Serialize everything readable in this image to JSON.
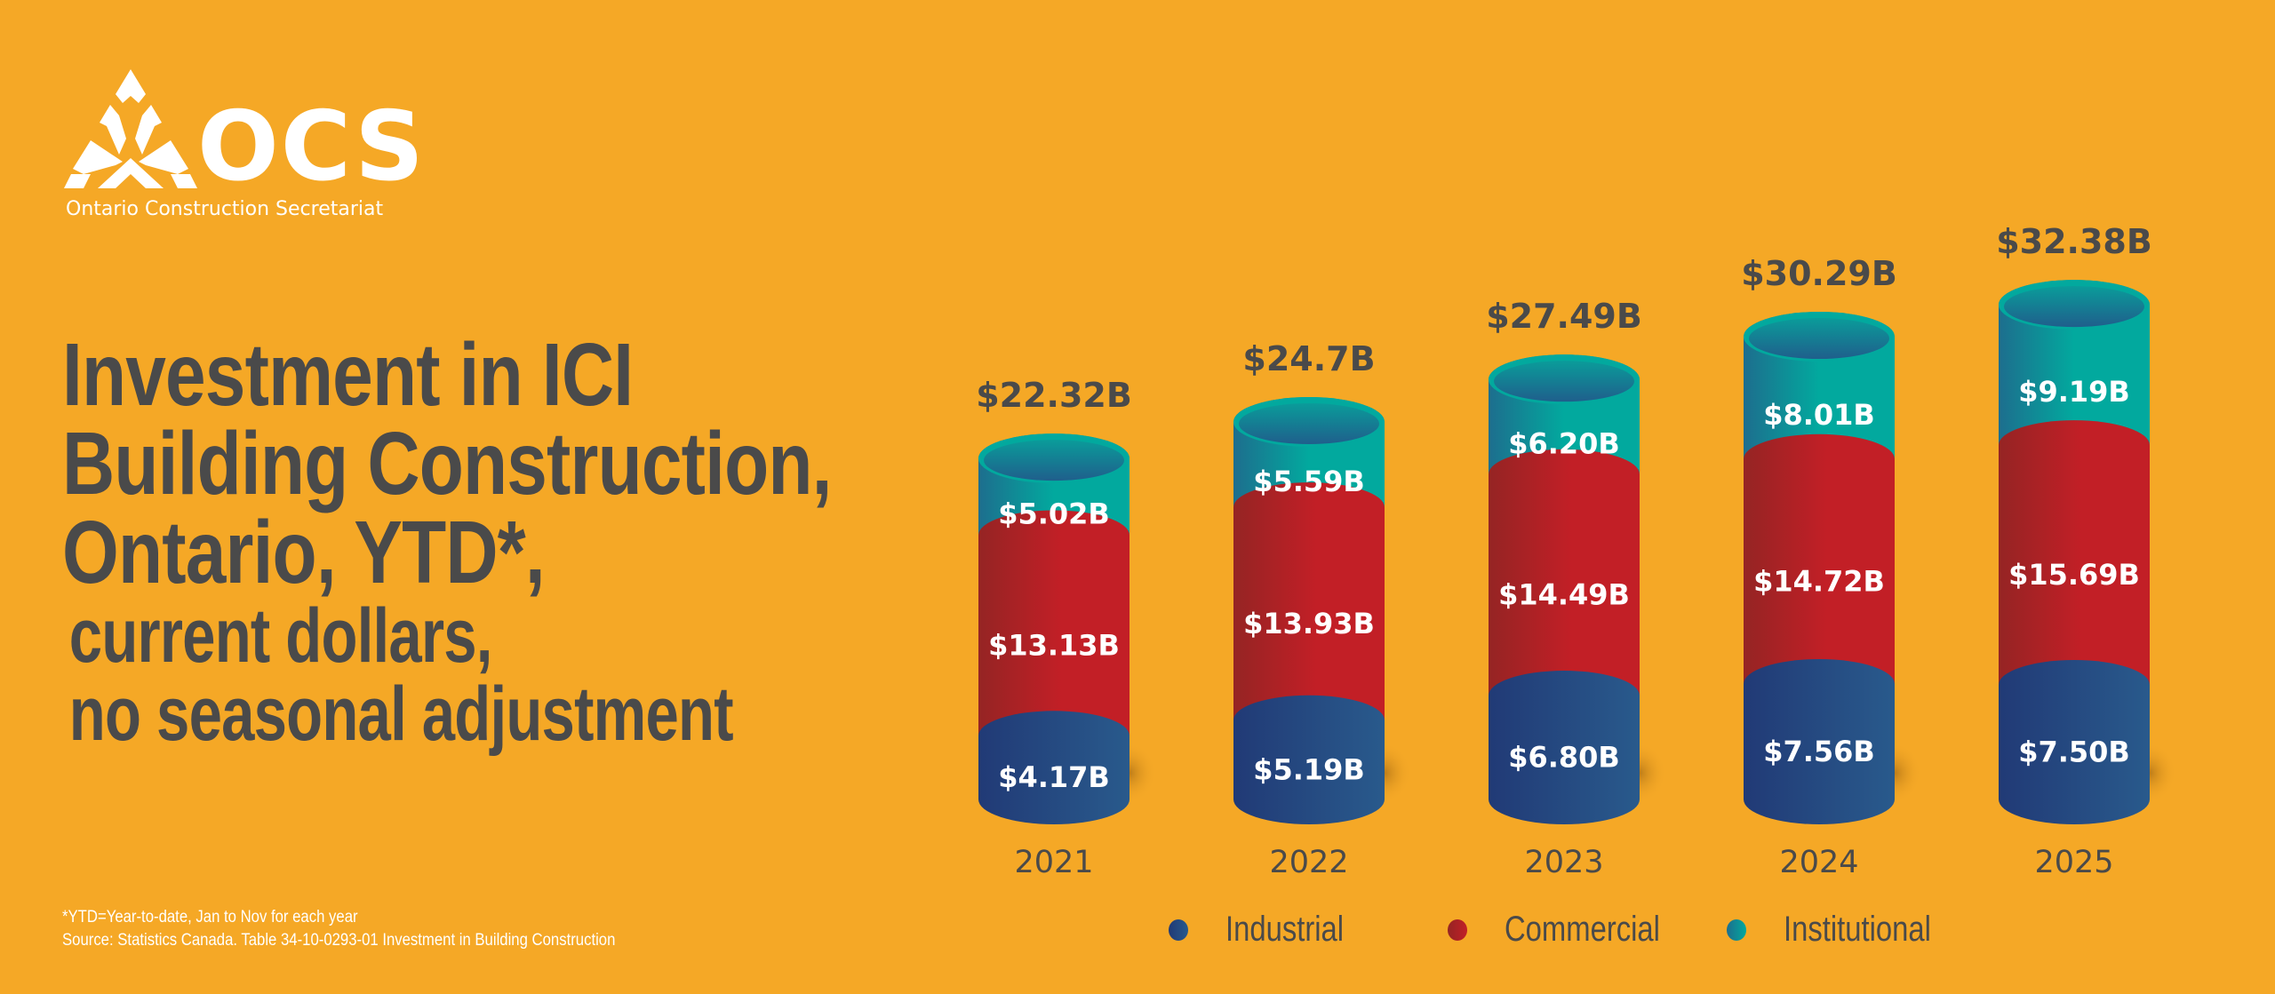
{
  "logo": {
    "name": "OCS",
    "subtitle": "Ontario Construction Secretariat"
  },
  "title": {
    "lines": [
      "Investment in ICI",
      "Building Construction,",
      "Ontario, YTD*,"
    ],
    "sub_lines": [
      "current dollars,",
      "no seasonal adjustment"
    ]
  },
  "footnote": {
    "ytd": "*YTD=Year-to-date, Jan to Nov for each year",
    "source": "Source:  Statistics Canada. Table 34-10-0293-01  Investment in Building Construction"
  },
  "colors": {
    "background": "#F5A826",
    "industrial": "#24417A",
    "commercial": "#C21F26",
    "institutional": "#02A99E",
    "text_dark": "#4A4A4A"
  },
  "chart_data": {
    "type": "bar",
    "stacked": true,
    "title": "Investment in ICI Building Construction, Ontario, YTD*, current dollars, no seasonal adjustment",
    "xlabel": "",
    "ylabel": "",
    "unit": "$ billions",
    "categories": [
      "2021",
      "2022",
      "2023",
      "2024",
      "2025"
    ],
    "series": [
      {
        "name": "Industrial",
        "values": [
          4.17,
          5.19,
          6.8,
          7.56,
          7.5
        ],
        "labels": [
          "$4.17B",
          "$5.19B",
          "$6.80B",
          "$7.56B",
          "$7.50B"
        ]
      },
      {
        "name": "Commercial",
        "values": [
          13.13,
          13.93,
          14.49,
          14.72,
          15.69
        ],
        "labels": [
          "$13.13B",
          "$13.93B",
          "$14.49B",
          "$14.72B",
          "$15.69B"
        ]
      },
      {
        "name": "Institutional",
        "values": [
          5.02,
          5.59,
          6.2,
          8.01,
          9.19
        ],
        "labels": [
          "$5.02B",
          "$5.59B",
          "$6.20B",
          "$8.01B",
          "$9.19B"
        ]
      }
    ],
    "totals": [
      22.32,
      24.7,
      27.49,
      30.29,
      32.38
    ],
    "total_labels": [
      "$22.32B",
      "$24.7B",
      "$27.49B",
      "$30.29B",
      "$32.38B"
    ],
    "legend": [
      "Industrial",
      "Commercial",
      "Institutional"
    ],
    "legend_position": "bottom",
    "grid": false
  }
}
